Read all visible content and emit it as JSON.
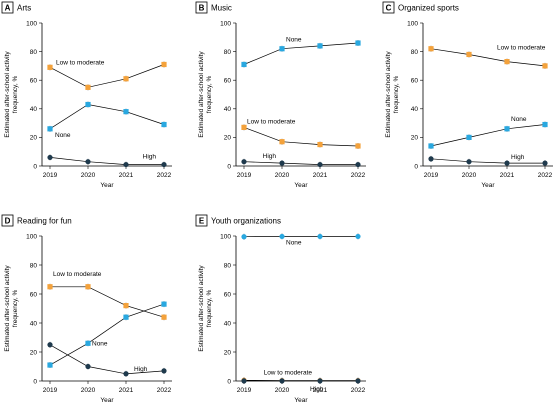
{
  "colors": {
    "low_to_moderate": "#f4a23b",
    "none": "#29a8e0",
    "high": "#1f3a4d"
  },
  "chart_data": [
    {
      "letter": "A",
      "title": "Arts",
      "type": "line",
      "x": [
        "2019",
        "2020",
        "2021",
        "2022"
      ],
      "xlabel": "Year",
      "ylabel": [
        "Estimated after-school activity",
        "frequency, %"
      ],
      "ylim": [
        0,
        100
      ],
      "yticks": [
        0,
        20,
        40,
        60,
        80,
        100
      ],
      "series": [
        {
          "name": "Low to moderate",
          "key": "low_to_moderate",
          "marker": "square",
          "values": [
            69,
            55,
            61,
            71
          ]
        },
        {
          "name": "None",
          "key": "none",
          "marker": "square",
          "values": [
            26,
            43,
            38,
            29
          ]
        },
        {
          "name": "High",
          "key": "high",
          "marker": "circle",
          "values": [
            6,
            3,
            1,
            1
          ]
        }
      ]
    },
    {
      "letter": "B",
      "title": "Music",
      "type": "line",
      "x": [
        "2019",
        "2020",
        "2021",
        "2022"
      ],
      "xlabel": "Year",
      "ylabel": [
        "Estimated after-school activity",
        "frequency, %"
      ],
      "ylim": [
        0,
        100
      ],
      "yticks": [
        0,
        20,
        40,
        60,
        80,
        100
      ],
      "series": [
        {
          "name": "None",
          "key": "none",
          "marker": "square",
          "values": [
            71,
            82,
            84,
            86
          ]
        },
        {
          "name": "Low to moderate",
          "key": "low_to_moderate",
          "marker": "square",
          "values": [
            27,
            17,
            15,
            14
          ]
        },
        {
          "name": "High",
          "key": "high",
          "marker": "circle",
          "values": [
            3,
            2,
            1,
            1
          ]
        }
      ]
    },
    {
      "letter": "C",
      "title": "Organized sports",
      "type": "line",
      "x": [
        "2019",
        "2020",
        "2021",
        "2022"
      ],
      "xlabel": "Year",
      "ylabel": [
        "Estimated after-school activity",
        "frequency, %"
      ],
      "ylim": [
        0,
        100
      ],
      "yticks": [
        0,
        20,
        40,
        60,
        80,
        100
      ],
      "series": [
        {
          "name": "Low to moderate",
          "key": "low_to_moderate",
          "marker": "square",
          "values": [
            82,
            78,
            73,
            70
          ]
        },
        {
          "name": "None",
          "key": "none",
          "marker": "square",
          "values": [
            14,
            20,
            26,
            29
          ]
        },
        {
          "name": "High",
          "key": "high",
          "marker": "circle",
          "values": [
            5,
            3,
            2,
            2
          ]
        }
      ]
    },
    {
      "letter": "D",
      "title": "Reading for fun",
      "type": "line",
      "x": [
        "2019",
        "2020",
        "2021",
        "2022"
      ],
      "xlabel": "Year",
      "ylabel": [
        "Estimated after-school activity",
        "frequency, %"
      ],
      "ylim": [
        0,
        100
      ],
      "yticks": [
        0,
        20,
        40,
        60,
        80,
        100
      ],
      "series": [
        {
          "name": "Low to moderate",
          "key": "low_to_moderate",
          "marker": "square",
          "values": [
            65,
            65,
            52,
            44
          ]
        },
        {
          "name": "None",
          "key": "none",
          "marker": "square",
          "values": [
            11,
            26,
            44,
            53
          ]
        },
        {
          "name": "High",
          "key": "high",
          "marker": "circle",
          "values": [
            25,
            10,
            5,
            7
          ]
        }
      ]
    },
    {
      "letter": "E",
      "title": "Youth organizations",
      "type": "line",
      "x": [
        "2019",
        "2020",
        "2021",
        "2022"
      ],
      "xlabel": "Year",
      "ylabel": [
        "Estimated after-school activity",
        "frequency, %"
      ],
      "ylim": [
        0,
        100
      ],
      "yticks": [
        0,
        20,
        40,
        60,
        80,
        100
      ],
      "series": [
        {
          "name": "None",
          "key": "none",
          "marker": "circle",
          "values": [
            99.5,
            99.7,
            99.7,
            99.7
          ]
        },
        {
          "name": "Low to moderate",
          "key": "low_to_moderate",
          "marker": "circle",
          "values": [
            0.5,
            0.3,
            0.3,
            0.3
          ]
        },
        {
          "name": "High",
          "key": "high",
          "marker": "circle",
          "values": [
            0.1,
            0.1,
            0.1,
            0.1
          ]
        }
      ]
    }
  ]
}
